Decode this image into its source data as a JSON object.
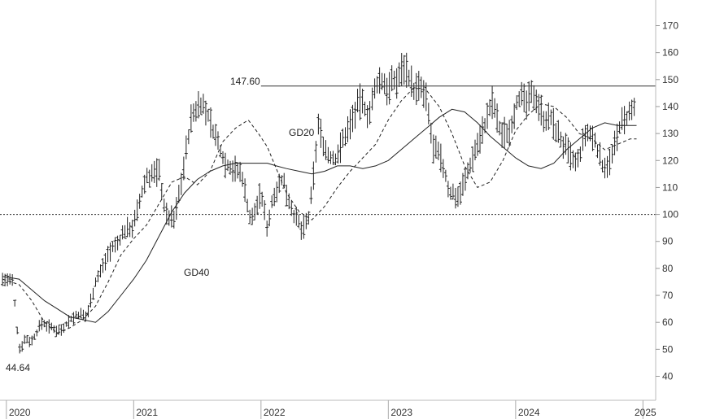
{
  "chart_data": {
    "type": "line",
    "title": "",
    "xlabel": "",
    "ylabel": "",
    "grid": false,
    "legend": "none",
    "ylim": [
      30,
      180
    ],
    "y_ticks": [
      40,
      50,
      60,
      70,
      80,
      90,
      100,
      110,
      120,
      130,
      140,
      150,
      160,
      170
    ],
    "x_range": [
      2019.95,
      2025.1
    ],
    "x_ticks": [
      {
        "label": "2020",
        "x": 2020.0
      },
      {
        "label": "2021",
        "x": 2021.0
      },
      {
        "label": "2022",
        "x": 2022.0
      },
      {
        "label": "2023",
        "x": 2023.0
      },
      {
        "label": "2024",
        "x": 2024.0
      },
      {
        "label": "2025",
        "x": 2025.0
      }
    ],
    "colors": {
      "price": "#222222",
      "ma": "#222222",
      "reference": "#333333"
    },
    "price_series": {
      "x": [
        2019.97,
        2020.05,
        2020.1,
        2020.15,
        2020.2,
        2020.28,
        2020.35,
        2020.42,
        2020.5,
        2020.57,
        2020.63,
        2020.7,
        2020.76,
        2020.8,
        2020.87,
        2020.93,
        2021.0,
        2021.1,
        2021.2,
        2021.25,
        2021.32,
        2021.38,
        2021.45,
        2021.52,
        2021.58,
        2021.65,
        2021.72,
        2021.78,
        2021.85,
        2021.92,
        2022.0,
        2022.05,
        2022.1,
        2022.17,
        2022.25,
        2022.32,
        2022.38,
        2022.45,
        2022.52,
        2022.58,
        2022.65,
        2022.72,
        2022.78,
        2022.85,
        2022.92,
        2023.0,
        2023.07,
        2023.13,
        2023.2,
        2023.25,
        2023.3,
        2023.35,
        2023.42,
        2023.48,
        2023.55,
        2023.62,
        2023.68,
        2023.75,
        2023.82,
        2023.88,
        2023.95,
        2024.02,
        2024.08,
        2024.15,
        2024.22,
        2024.28,
        2024.35,
        2024.42,
        2024.48,
        2024.55,
        2024.62,
        2024.68,
        2024.75,
        2024.82,
        2024.88,
        2024.95
      ],
      "values": [
        76,
        75,
        50,
        54,
        53,
        60,
        58,
        57,
        61,
        63,
        62,
        75,
        81,
        86,
        89,
        94,
        96,
        114,
        116,
        100,
        98,
        114,
        135,
        142,
        137,
        128,
        119,
        117,
        115,
        97,
        108,
        95,
        108,
        113,
        101,
        94,
        99,
        133,
        122,
        120,
        128,
        136,
        142,
        137,
        150,
        147,
        150,
        156,
        146,
        147,
        142,
        125,
        120,
        108,
        107,
        115,
        124,
        132,
        142,
        130,
        131,
        144,
        141,
        145,
        136,
        135,
        128,
        122,
        118,
        130,
        128,
        118,
        120,
        133,
        136,
        140
      ]
    },
    "ma_series": [
      {
        "name": "GD20",
        "style": "dashed",
        "x": [
          2019.97,
          2020.1,
          2020.2,
          2020.3,
          2020.4,
          2020.5,
          2020.6,
          2020.7,
          2020.8,
          2020.9,
          2021.0,
          2021.1,
          2021.2,
          2021.3,
          2021.4,
          2021.5,
          2021.6,
          2021.7,
          2021.8,
          2021.9,
          2021.98,
          2022.05,
          2022.12,
          2022.2,
          2022.3,
          2022.4,
          2022.5,
          2022.6,
          2022.7,
          2022.8,
          2022.9,
          2023.0,
          2023.1,
          2023.2,
          2023.3,
          2023.4,
          2023.5,
          2023.6,
          2023.7,
          2023.8,
          2023.9,
          2024.0,
          2024.1,
          2024.2,
          2024.3,
          2024.4,
          2024.5,
          2024.6,
          2024.7,
          2024.8,
          2024.9,
          2024.95
        ],
        "values": [
          76,
          74,
          68,
          60,
          56,
          58,
          61,
          66,
          75,
          85,
          91,
          96,
          104,
          112,
          114,
          111,
          116,
          127,
          132,
          135,
          130,
          125,
          117,
          108,
          101,
          98,
          103,
          110,
          116,
          121,
          126,
          135,
          142,
          147,
          146,
          140,
          130,
          118,
          110,
          112,
          120,
          131,
          137,
          141,
          140,
          136,
          130,
          128,
          124,
          126,
          128,
          128
        ]
      },
      {
        "name": "GD40",
        "style": "solid",
        "x": [
          2019.97,
          2020.1,
          2020.2,
          2020.3,
          2020.4,
          2020.5,
          2020.6,
          2020.7,
          2020.8,
          2020.9,
          2021.0,
          2021.1,
          2021.2,
          2021.3,
          2021.4,
          2021.5,
          2021.6,
          2021.7,
          2021.8,
          2021.9,
          2021.98,
          2022.05,
          2022.12,
          2022.2,
          2022.3,
          2022.4,
          2022.5,
          2022.6,
          2022.7,
          2022.8,
          2022.9,
          2023.0,
          2023.1,
          2023.2,
          2023.3,
          2023.4,
          2023.5,
          2023.6,
          2023.7,
          2023.8,
          2023.9,
          2024.0,
          2024.1,
          2024.2,
          2024.3,
          2024.4,
          2024.5,
          2024.6,
          2024.7,
          2024.8,
          2024.9,
          2024.95
        ],
        "values": [
          77,
          76,
          72,
          68,
          65,
          62,
          61,
          60,
          64,
          70,
          76,
          83,
          92,
          101,
          108,
          113,
          116,
          118,
          119,
          119,
          119,
          119,
          118,
          117,
          116,
          115,
          116,
          118,
          118,
          117,
          118,
          120,
          124,
          128,
          132,
          136,
          139,
          138,
          134,
          129,
          125,
          121,
          118,
          117,
          119,
          124,
          128,
          132,
          134,
          133,
          133,
          133
        ]
      }
    ],
    "reference_lines": [
      {
        "y": 147.6,
        "style": "solid",
        "x_start": 2022.0,
        "x_end": 2025.1
      },
      {
        "y": 100,
        "style": "dotted",
        "x_start": 2019.95,
        "x_end": 2025.1
      }
    ],
    "annotations": {
      "high_label": "147.60",
      "low_label": "44.64",
      "ma20_label": "GD20",
      "ma40_label": "GD40"
    }
  }
}
